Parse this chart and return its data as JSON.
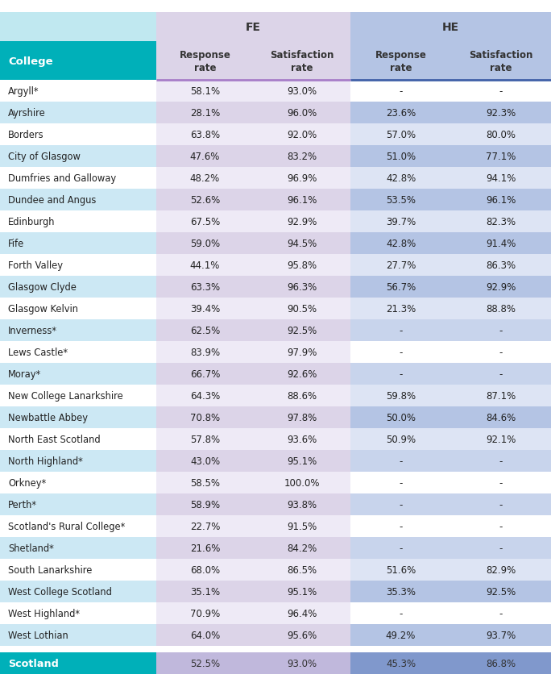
{
  "colleges": [
    "Argyll*",
    "Ayrshire",
    "Borders",
    "City of Glasgow",
    "Dumfries and Galloway",
    "Dundee and Angus",
    "Edinburgh",
    "Fife",
    "Forth Valley",
    "Glasgow Clyde",
    "Glasgow Kelvin",
    "Inverness*",
    "Lews Castle*",
    "Moray*",
    "New College Lanarkshire",
    "Newbattle Abbey",
    "North East Scotland",
    "North Highland*",
    "Orkney*",
    "Perth*",
    "Scotland's Rural College*",
    "Shetland*",
    "South Lanarkshire",
    "West College Scotland",
    "West Highland*",
    "West Lothian"
  ],
  "fe_response": [
    "58.1%",
    "28.1%",
    "63.8%",
    "47.6%",
    "48.2%",
    "52.6%",
    "67.5%",
    "59.0%",
    "44.1%",
    "63.3%",
    "39.4%",
    "62.5%",
    "83.9%",
    "66.7%",
    "64.3%",
    "70.8%",
    "57.8%",
    "43.0%",
    "58.5%",
    "58.9%",
    "22.7%",
    "21.6%",
    "68.0%",
    "35.1%",
    "70.9%",
    "64.0%"
  ],
  "fe_satisfaction": [
    "93.0%",
    "96.0%",
    "92.0%",
    "83.2%",
    "96.9%",
    "96.1%",
    "92.9%",
    "94.5%",
    "95.8%",
    "96.3%",
    "90.5%",
    "92.5%",
    "97.9%",
    "92.6%",
    "88.6%",
    "97.8%",
    "93.6%",
    "95.1%",
    "100.0%",
    "93.8%",
    "91.5%",
    "84.2%",
    "86.5%",
    "95.1%",
    "96.4%",
    "95.6%"
  ],
  "he_response": [
    "-",
    "23.6%",
    "57.0%",
    "51.0%",
    "42.8%",
    "53.5%",
    "39.7%",
    "42.8%",
    "27.7%",
    "56.7%",
    "21.3%",
    "-",
    "-",
    "-",
    "59.8%",
    "50.0%",
    "50.9%",
    "-",
    "-",
    "-",
    "-",
    "-",
    "51.6%",
    "35.3%",
    "-",
    "49.2%"
  ],
  "he_satisfaction": [
    "-",
    "92.3%",
    "80.0%",
    "77.1%",
    "94.1%",
    "96.1%",
    "82.3%",
    "91.4%",
    "86.3%",
    "92.9%",
    "88.8%",
    "-",
    "-",
    "-",
    "87.1%",
    "84.6%",
    "92.1%",
    "-",
    "-",
    "-",
    "-",
    "-",
    "82.9%",
    "92.5%",
    "-",
    "93.7%"
  ],
  "scotland_fe_response": "52.5%",
  "scotland_fe_satisfaction": "93.0%",
  "scotland_he_response": "45.3%",
  "scotland_he_satisfaction": "86.8%",
  "col_bg_light": "#cce8f4",
  "col_bg_white": "#ffffff",
  "fe_header_bg": "#dcd4e8",
  "he_header_bg": "#b4c4e4",
  "fe_cell_light": "#dcd4e8",
  "fe_cell_white": "#eeeaf6",
  "he_cell_light": "#b4c4e4",
  "he_cell_white": "#dde4f4",
  "he_cell_dash_light": "#c8d4ec",
  "he_cell_dash_white": "#ffffff",
  "college_header_bg": "#00b0b9",
  "college_header_text_bg": "#c8e8f0",
  "scotland_row_college_bg": "#00b0b9",
  "scotland_row_fe_bg": "#c0b8dc",
  "scotland_row_he_bg": "#8098cc",
  "separator_color_fe": "#a87ec8",
  "separator_color_he": "#4060a8",
  "col_label": "College"
}
